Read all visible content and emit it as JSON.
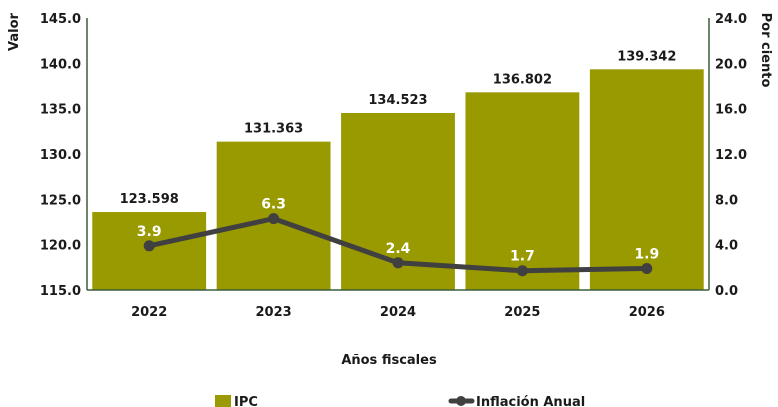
{
  "chart_data": {
    "type": "bar",
    "categories": [
      "2022",
      "2023",
      "2024",
      "2025",
      "2026"
    ],
    "series": [
      {
        "name": "IPC",
        "type": "bar",
        "axis": "left",
        "values": [
          123.598,
          131.363,
          134.523,
          136.802,
          139.342
        ],
        "labels": [
          "123.598",
          "131.363",
          "134.523",
          "136.802",
          "139.342"
        ]
      },
      {
        "name": "Inflación Anual",
        "type": "line",
        "axis": "right",
        "values": [
          3.9,
          6.3,
          2.4,
          1.7,
          1.9
        ],
        "labels": [
          "3.9",
          "6.3",
          "2.4",
          "1.7",
          "1.9"
        ]
      }
    ],
    "xlabel": "Años fiscales",
    "ylabel": "Valor",
    "ylabel_right": "Por ciento",
    "ylim": [
      115.0,
      145.0
    ],
    "ylim_right": [
      0.0,
      24.0
    ],
    "yticks": [
      "115.0",
      "120.0",
      "125.0",
      "130.0",
      "135.0",
      "140.0",
      "145.0"
    ],
    "yticks_right": [
      "0.0",
      "4.0",
      "8.0",
      "12.0",
      "16.0",
      "20.0",
      "24.0"
    ],
    "grid": false,
    "legend_position": "bottom",
    "colors": {
      "bar": "#999900",
      "line": "#404040",
      "axis": "#3a5e3a"
    }
  }
}
